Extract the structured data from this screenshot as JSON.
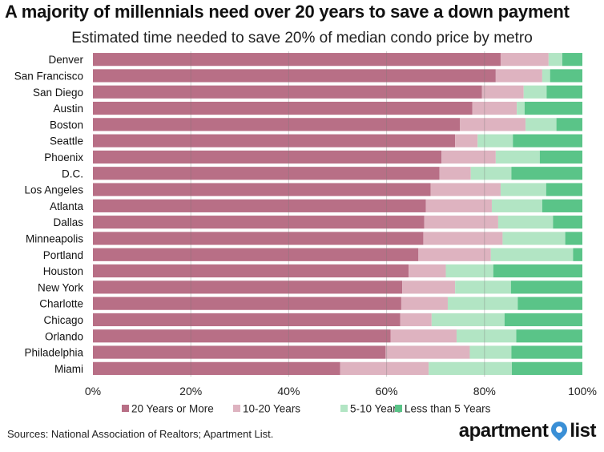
{
  "header": {
    "title": "A majority of millennials need over 20 years to save a down payment",
    "subtitle": "Estimated time needed to save 20% of median condo price by metro"
  },
  "footer": {
    "sources": "Sources: National Association of Realtors; Apartment List.",
    "brand_left": "apartment",
    "brand_right": "list"
  },
  "chart_data": {
    "type": "bar",
    "orientation": "horizontal",
    "stacked": true,
    "percent_stacked": true,
    "title": "A majority of millennials need over 20 years to save a down payment",
    "subtitle": "Estimated time needed to save 20% of median condo price by metro",
    "categories": [
      "Denver",
      "San Francisco",
      "San Diego",
      "Austin",
      "Boston",
      "Seattle",
      "Phoenix",
      "D.C.",
      "Los Angeles",
      "Atlanta",
      "Dallas",
      "Minneapolis",
      "Portland",
      "Houston",
      "New York",
      "Charlotte",
      "Chicago",
      "Orlando",
      "Philadelphia",
      "Miami"
    ],
    "series": [
      {
        "name": "20 Years or More",
        "color": "#b86f86",
        "values": [
          83.3,
          82.3,
          79.5,
          77.5,
          75,
          74,
          71.2,
          70.8,
          69,
          68,
          67.7,
          67.5,
          66.5,
          64.5,
          63.2,
          63,
          62.8,
          60.8,
          59.8,
          50.5
        ]
      },
      {
        "name": "10-20 Years",
        "color": "#deb3c0",
        "values": [
          9.8,
          9.5,
          8.5,
          9.1,
          13.4,
          4.6,
          11.1,
          6.4,
          14.3,
          13.5,
          15.1,
          16.2,
          14.8,
          7.6,
          10.8,
          9.5,
          6.4,
          13.5,
          17.2,
          18.1
        ]
      },
      {
        "name": "5-10 Years",
        "color": "#b2e5c4",
        "values": [
          2.8,
          1.6,
          4.7,
          1.6,
          6.3,
          7.2,
          9,
          8.3,
          9.3,
          10.3,
          11.2,
          12.8,
          16.8,
          9.7,
          11.4,
          14.3,
          14.9,
          12.2,
          8.5,
          17
        ]
      },
      {
        "name": "Less than 5 Years",
        "color": "#5ac488",
        "values": [
          4.1,
          6.6,
          7.3,
          11.8,
          5.3,
          14.2,
          8.7,
          14.5,
          7.4,
          8.2,
          6,
          3.5,
          1.9,
          18.2,
          14.6,
          13.2,
          15.9,
          13.5,
          14.5,
          14.4
        ]
      }
    ],
    "xaxis": {
      "ticks": [
        "0%",
        "20%",
        "40%",
        "60%",
        "80%",
        "100%"
      ],
      "range": [
        0,
        100
      ]
    },
    "grid": true,
    "legend_position": "bottom"
  }
}
